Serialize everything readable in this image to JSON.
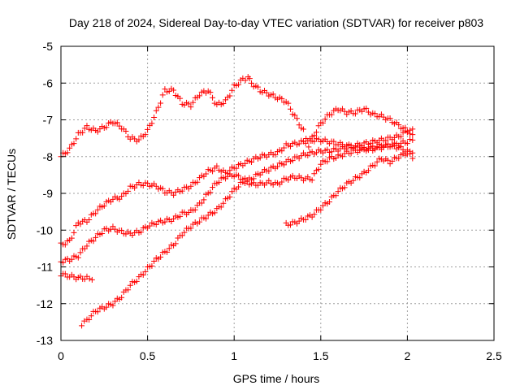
{
  "chart_data": {
    "type": "scatter",
    "title": "Day 218 of 2024, Sidereal Day-to-day VTEC variation (SDTVAR) for receiver p803",
    "xlabel": "GPS time / hours",
    "ylabel": "SDTVAR / TECUs",
    "xlim": [
      0,
      2.5
    ],
    "ylim": [
      -13,
      -5
    ],
    "x_ticks": [
      "0",
      "0.5",
      "1",
      "1.5",
      "2",
      "2.5"
    ],
    "y_ticks": [
      "-5",
      "-6",
      "-7",
      "-8",
      "-9",
      "-10",
      "-11",
      "-12",
      "-13"
    ],
    "grid": true,
    "marker": "+",
    "colors": {
      "series": "#ff0000",
      "grid": "#a0a0a0",
      "axes": "#000000"
    },
    "series": [
      {
        "x": [
          0.0,
          0.05,
          0.1,
          0.15,
          0.2,
          0.25,
          0.3,
          0.35,
          0.4,
          0.45,
          0.5,
          0.55,
          0.6,
          0.65,
          0.7,
          0.75,
          0.8,
          0.85,
          0.9,
          0.95,
          1.0,
          1.05,
          1.08,
          1.1,
          1.15,
          1.2,
          1.25,
          1.3,
          1.35,
          1.4,
          1.43,
          1.45,
          1.5,
          1.55,
          1.6,
          1.65,
          1.7,
          1.75,
          1.8,
          1.85,
          1.9,
          1.95,
          2.0,
          2.03
        ],
        "y": [
          -8.0,
          -7.8,
          -7.4,
          -7.2,
          -7.3,
          -7.2,
          -7.05,
          -7.2,
          -7.5,
          -7.55,
          -7.3,
          -6.8,
          -6.2,
          -6.2,
          -6.55,
          -6.6,
          -6.3,
          -6.2,
          -6.6,
          -6.5,
          -6.1,
          -5.9,
          -5.85,
          -6.0,
          -6.2,
          -6.3,
          -6.4,
          -6.5,
          -6.9,
          -7.3,
          -7.7,
          -7.5,
          -7.1,
          -6.85,
          -6.7,
          -6.8,
          -6.8,
          -6.7,
          -6.85,
          -6.9,
          -7.0,
          -7.15,
          -7.3,
          -7.4
        ]
      },
      {
        "x": [
          0.0,
          0.05,
          0.1,
          0.15,
          0.2,
          0.25,
          0.3,
          0.35,
          0.4,
          0.45,
          0.5,
          0.55,
          0.6,
          0.65,
          0.7,
          0.75,
          0.8,
          0.85,
          0.9,
          0.95,
          1.0,
          1.05,
          1.1,
          1.15,
          1.2,
          1.25,
          1.3,
          1.35,
          1.4,
          1.45,
          1.5,
          1.55,
          1.6,
          1.65,
          1.7,
          1.75,
          1.8,
          1.85,
          1.9,
          1.95,
          2.0,
          2.03
        ],
        "y": [
          -10.4,
          -10.3,
          -9.8,
          -9.75,
          -9.5,
          -9.3,
          -9.15,
          -9.1,
          -8.85,
          -8.75,
          -8.75,
          -8.8,
          -8.95,
          -9.0,
          -8.9,
          -8.8,
          -8.6,
          -8.4,
          -8.3,
          -8.45,
          -8.3,
          -8.2,
          -8.1,
          -8.0,
          -7.95,
          -7.9,
          -7.7,
          -7.65,
          -7.6,
          -7.55,
          -7.55,
          -7.6,
          -7.65,
          -7.7,
          -7.75,
          -7.8,
          -7.75,
          -7.7,
          -7.7,
          -7.65,
          -7.6,
          -7.55
        ]
      },
      {
        "x": [
          0.0,
          0.05,
          0.1,
          0.15,
          0.2,
          0.25,
          0.3,
          0.35,
          0.4,
          0.45,
          0.5,
          0.55,
          0.6,
          0.65,
          0.7,
          0.75,
          0.8,
          0.85,
          0.9,
          0.95,
          1.0,
          1.05,
          1.1,
          1.15,
          1.2,
          1.25,
          1.3,
          1.35,
          1.4,
          1.45,
          1.5,
          1.55,
          1.6,
          1.65,
          1.7,
          1.75,
          1.8,
          1.85,
          1.9,
          1.95,
          2.0,
          2.03
        ],
        "y": [
          -10.85,
          -10.8,
          -10.7,
          -10.4,
          -10.2,
          -10.0,
          -9.95,
          -10.05,
          -10.1,
          -10.05,
          -9.9,
          -9.8,
          -9.75,
          -9.7,
          -9.55,
          -9.5,
          -9.3,
          -9.0,
          -8.7,
          -8.55,
          -8.5,
          -8.6,
          -8.75,
          -8.75,
          -8.7,
          -8.75,
          -8.6,
          -8.55,
          -8.6,
          -8.6,
          -8.2,
          -8.05,
          -8.0,
          -7.9,
          -7.85,
          -7.8,
          -7.8,
          -7.75,
          -7.7,
          -7.75,
          -7.85,
          -7.9
        ]
      },
      {
        "x": [
          0.0,
          0.05,
          0.1,
          0.15,
          0.18
        ],
        "y": [
          -11.2,
          -11.25,
          -11.3,
          -11.3,
          -11.35
        ]
      },
      {
        "x": [
          0.12,
          0.15,
          0.2,
          0.25,
          0.3,
          0.35,
          0.4,
          0.45,
          0.5,
          0.55,
          0.6,
          0.65,
          0.7,
          0.75,
          0.8,
          0.85,
          0.9,
          0.95,
          1.0,
          1.05,
          1.1,
          1.15,
          1.2,
          1.25,
          1.3,
          1.35,
          1.4,
          1.45,
          1.5,
          1.55,
          1.6,
          1.65,
          1.7,
          1.75,
          1.8,
          1.85,
          1.9,
          1.95,
          2.0,
          2.03
        ],
        "y": [
          -12.55,
          -12.45,
          -12.2,
          -12.1,
          -12.0,
          -11.8,
          -11.5,
          -11.3,
          -11.05,
          -10.8,
          -10.6,
          -10.4,
          -10.1,
          -9.9,
          -9.75,
          -9.6,
          -9.45,
          -9.2,
          -8.9,
          -8.7,
          -8.6,
          -8.45,
          -8.35,
          -8.25,
          -8.15,
          -8.05,
          -7.95,
          -7.9,
          -7.85,
          -7.85,
          -7.8,
          -7.75,
          -7.7,
          -7.65,
          -7.6,
          -7.55,
          -7.5,
          -7.45,
          -7.3,
          -7.25
        ]
      },
      {
        "x": [
          1.3,
          1.35,
          1.4,
          1.45,
          1.5,
          1.55,
          1.6,
          1.65,
          1.7,
          1.75,
          1.8,
          1.85,
          1.9,
          1.95,
          2.0,
          2.03
        ],
        "y": [
          -9.85,
          -9.8,
          -9.7,
          -9.6,
          -9.4,
          -9.2,
          -8.95,
          -8.75,
          -8.6,
          -8.45,
          -8.25,
          -8.05,
          -8.15,
          -8.0,
          -7.9,
          -8.05
        ]
      }
    ]
  }
}
